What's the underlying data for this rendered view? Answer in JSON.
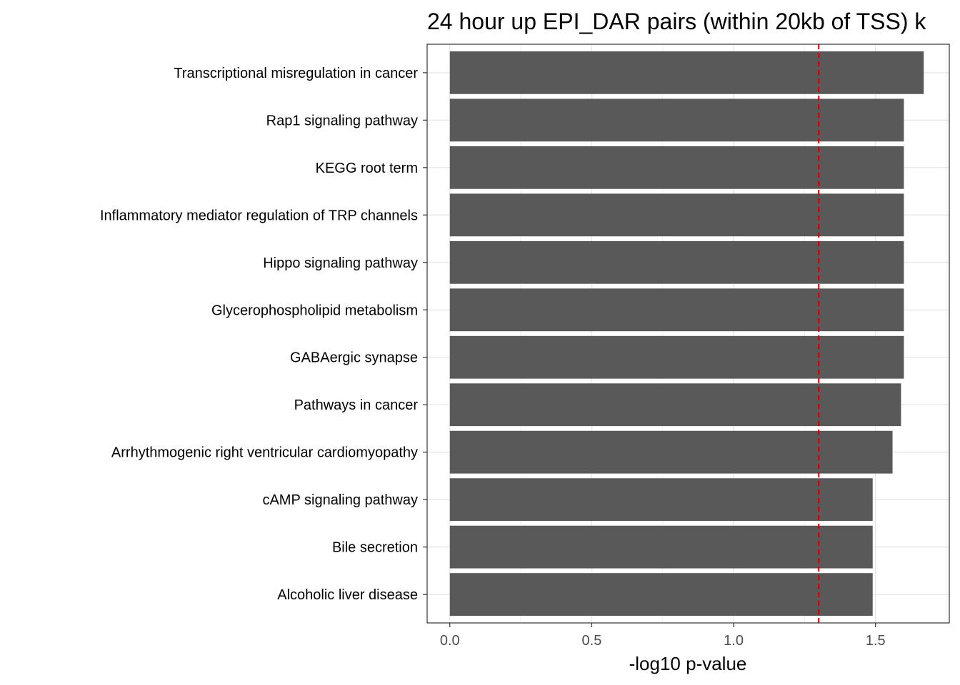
{
  "chart_data": {
    "type": "bar",
    "orientation": "horizontal",
    "title": "24 hour up EPI_DAR pairs (within 20kb of TSS) k",
    "xlabel": "-log10 p-value",
    "ylabel": "",
    "categories": [
      "Transcriptional misregulation in cancer",
      "Rap1 signaling pathway",
      "KEGG root term",
      "Inflammatory mediator regulation of TRP channels",
      "Hippo signaling pathway",
      "Glycerophospholipid metabolism",
      "GABAergic synapse",
      "Pathways in cancer",
      "Arrhythmogenic right ventricular cardiomyopathy",
      "cAMP signaling pathway",
      "Bile secretion",
      "Alcoholic liver disease"
    ],
    "values": [
      1.67,
      1.6,
      1.6,
      1.6,
      1.6,
      1.6,
      1.6,
      1.59,
      1.56,
      1.49,
      1.49,
      1.49
    ],
    "xlim": [
      -0.08,
      1.76
    ],
    "xticks": [
      0.0,
      0.5,
      1.0,
      1.5
    ],
    "xtick_labels": [
      "0.0",
      "0.5",
      "1.0",
      "1.5"
    ],
    "reference_line": {
      "x": 1.3,
      "style": "dashed",
      "color": "#cc0000"
    },
    "bar_color": "#595959",
    "grid": true,
    "legend": "none"
  }
}
